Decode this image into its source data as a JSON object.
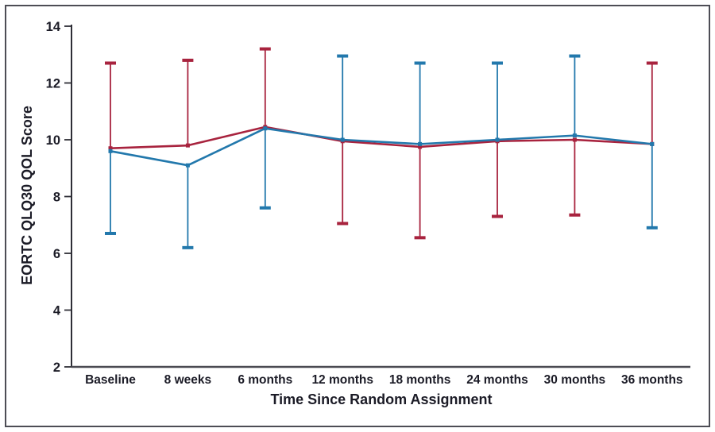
{
  "figure": {
    "y_axis_label": "EORTC QLQ30 QOL Score",
    "x_axis_label": "Time Since Random Assignment"
  },
  "chart_data": {
    "type": "line",
    "title": "",
    "xlabel": "Time Since Random Assignment",
    "ylabel": "EORTC QLQ30 QOL Score",
    "categories": [
      "Baseline",
      "8 weeks",
      "6 months",
      "12 months",
      "18 months",
      "24 months",
      "30 months",
      "36 months"
    ],
    "series": [
      {
        "name": "red-arm",
        "color": "#A8233E",
        "values": [
          9.7,
          9.8,
          10.45,
          9.95,
          9.75,
          9.95,
          10.0,
          9.85
        ],
        "error_upper": [
          12.7,
          12.8,
          13.2,
          null,
          null,
          null,
          null,
          12.7
        ],
        "error_lower": [
          null,
          null,
          null,
          7.05,
          6.55,
          7.3,
          7.35,
          null
        ]
      },
      {
        "name": "blue-arm",
        "color": "#2278AC",
        "values": [
          9.6,
          9.1,
          10.4,
          10.0,
          9.85,
          10.0,
          10.15,
          9.85
        ],
        "error_upper": [
          null,
          null,
          null,
          12.95,
          12.7,
          12.7,
          12.95,
          null
        ],
        "error_lower": [
          6.7,
          6.2,
          7.6,
          null,
          null,
          null,
          null,
          6.9
        ]
      }
    ],
    "ylim": [
      2,
      14
    ],
    "yticks": [
      2,
      4,
      6,
      8,
      10,
      12,
      14
    ],
    "grid": false,
    "legend": "none"
  }
}
